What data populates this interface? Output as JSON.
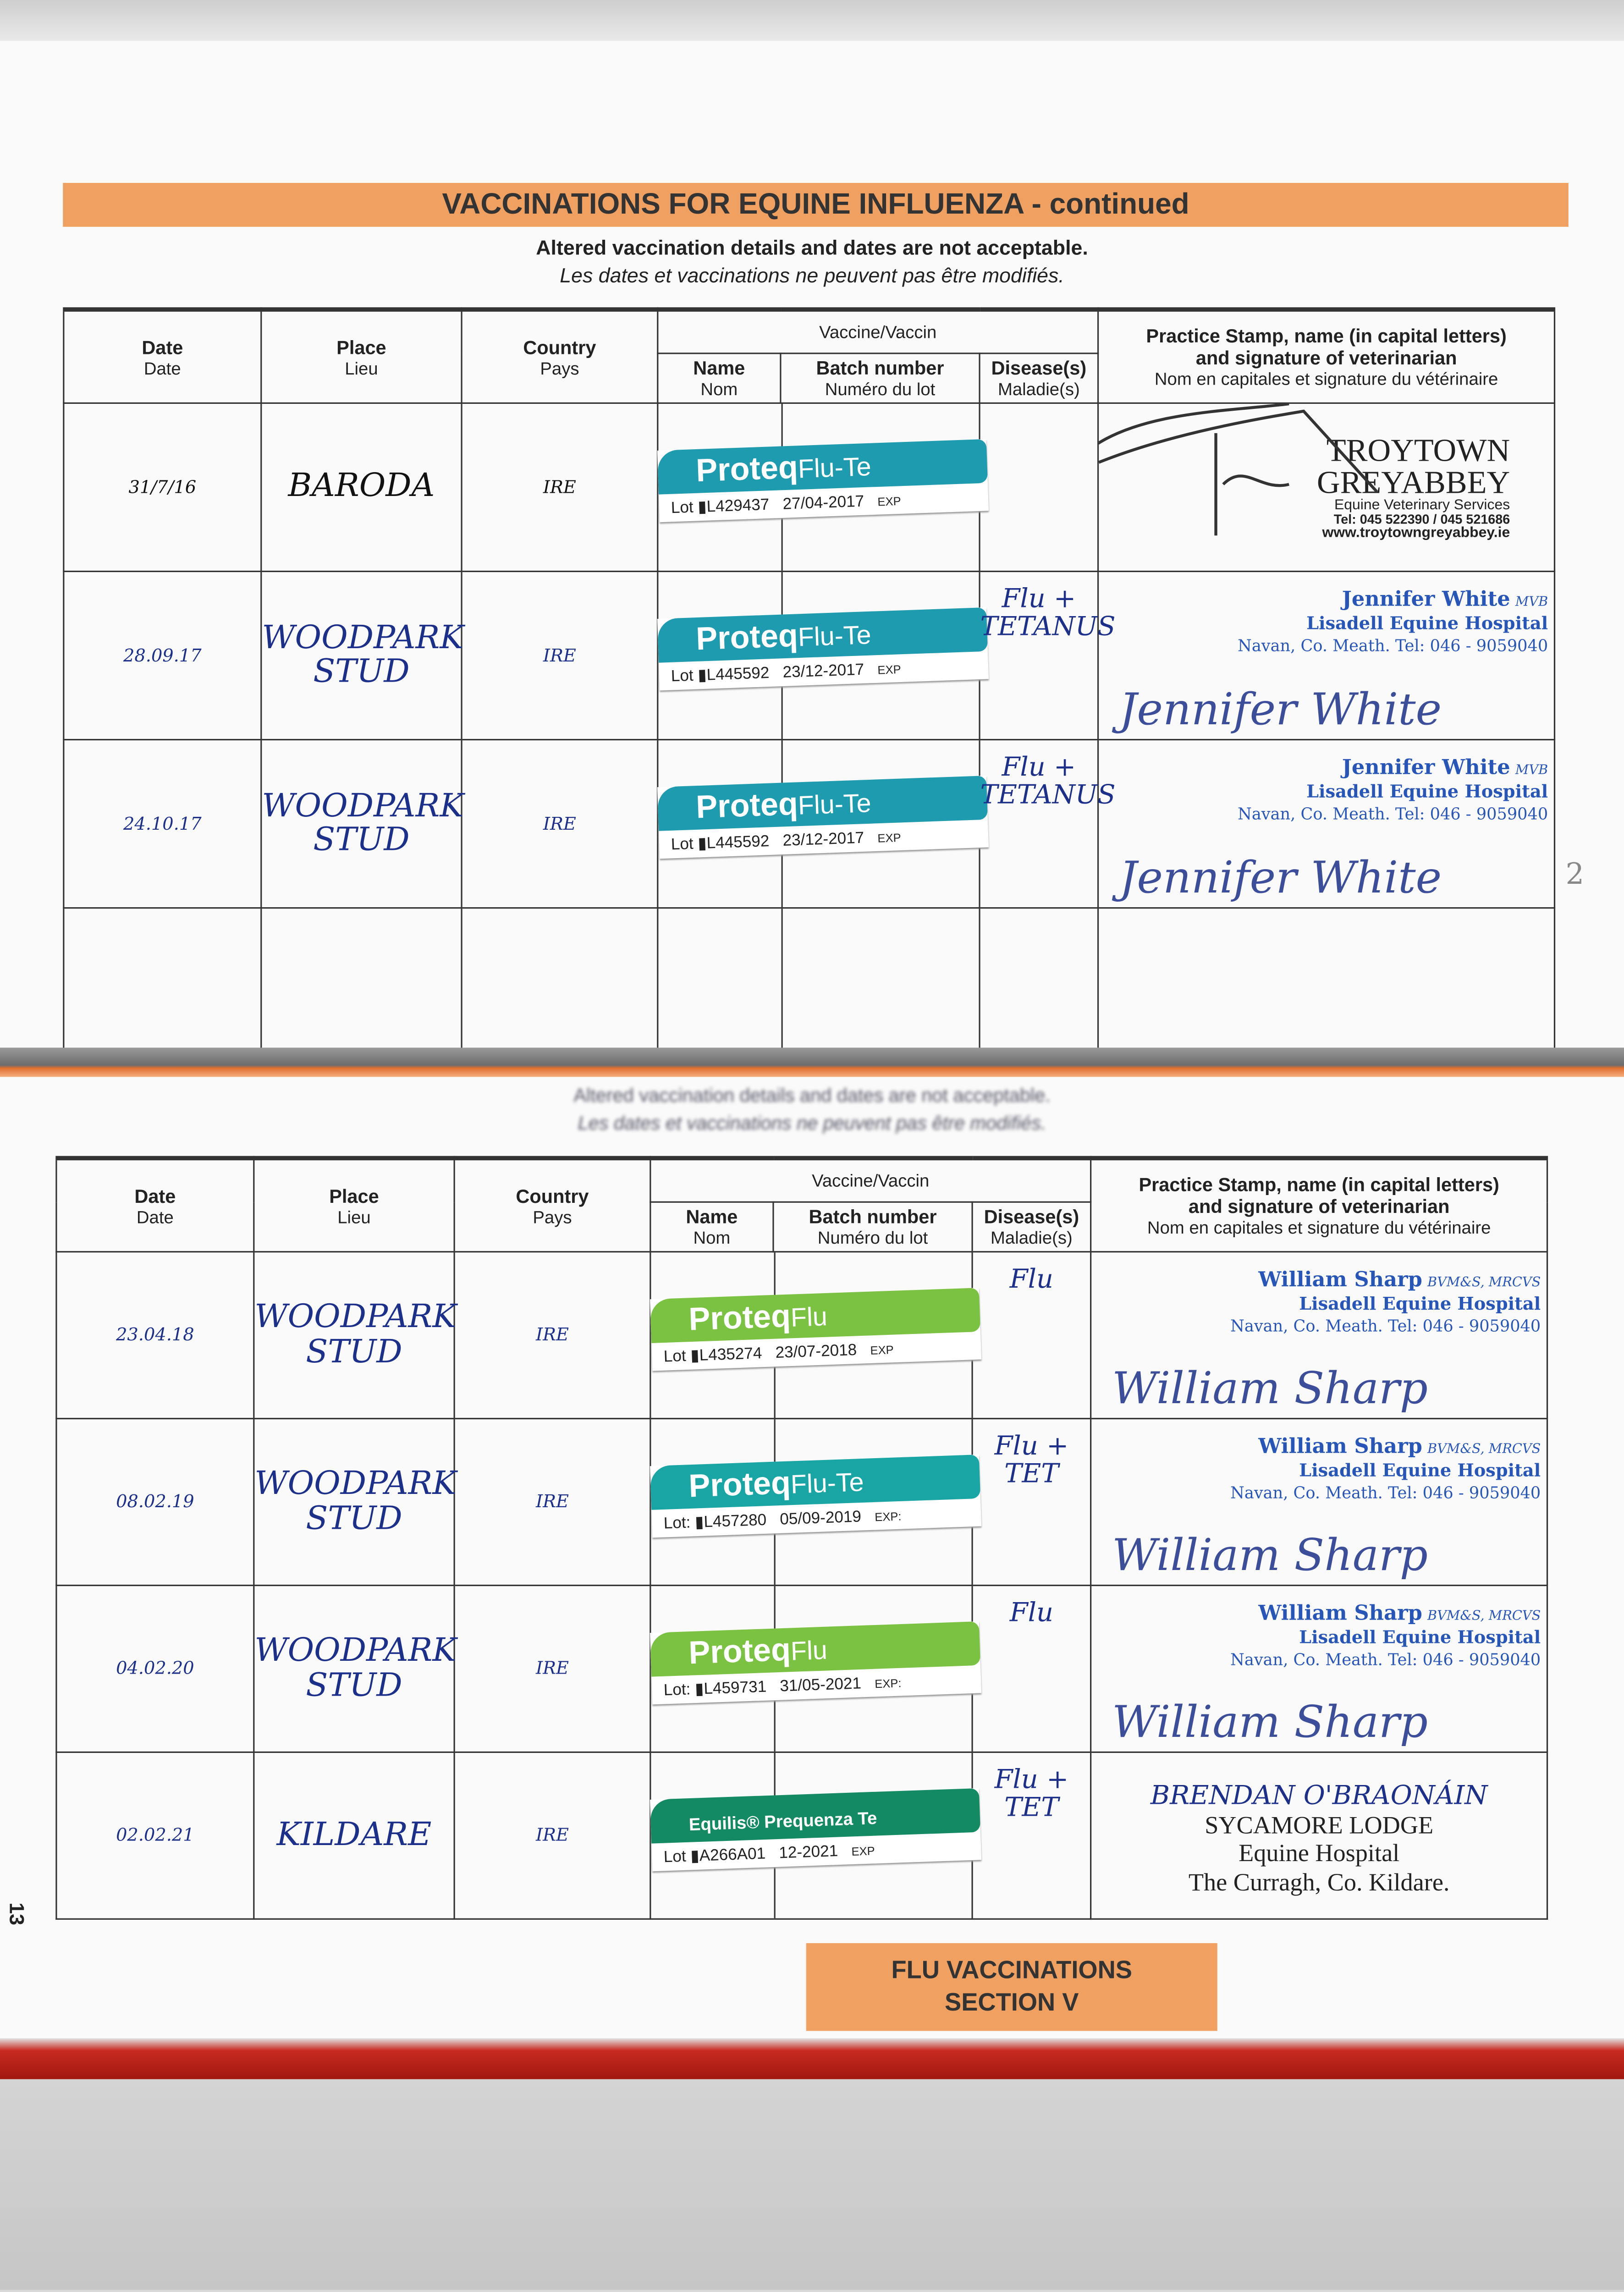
{
  "page": {
    "title": "VACCINATIONS FOR EQUINE INFLUENZA - continued",
    "notice_en": "Altered vaccination details and dates are not acceptable.",
    "notice_fr": "Les dates et vaccinations ne peuvent pas être modifiés.",
    "page_number": "13",
    "footer_line1": "FLU VACCINATIONS",
    "footer_line2": "SECTION V",
    "margin_mark": "2",
    "colors": {
      "banner": "#f0a060",
      "proteq_flu_te": "#1f9bb0",
      "proteq_flu": "#7cc242",
      "equilis": "#138a63",
      "ink": "#1c2f8a",
      "stamp": "#2856b8"
    }
  },
  "headers": {
    "date": "Date",
    "date_fr": "Date",
    "place": "Place",
    "place_fr": "Lieu",
    "country": "Country",
    "country_fr": "Pays",
    "vaccine": "Vaccine/Vaccin",
    "name": "Name",
    "name_fr": "Nom",
    "batch": "Batch number",
    "batch_fr": "Numéro du lot",
    "disease": "Disease(s)",
    "disease_fr": "Maladie(s)",
    "stamp1": "Practice Stamp, name (in capital letters)",
    "stamp2": "and signature of veterinarian",
    "stamp_fr": "Nom en capitales et signature du vétérinaire"
  },
  "top_rows": [
    {
      "date": "31/7/16",
      "place": "BARODA",
      "country": "IRE",
      "vaccine": {
        "brand": "Proteq",
        "variant": "Flu-Te",
        "lot_label": "Lot",
        "lot": "L429437",
        "exp": "27/04-2017",
        "exp_label": "EXP",
        "color": "#1f9bb0"
      },
      "disease": "",
      "stamp": {
        "type": "troytown",
        "line1": "TROYTOWN",
        "line2": "GREYABBEY",
        "line3": "Equine Veterinary Services",
        "line4": "Tel: 045 522390 / 045 521686",
        "line5": "www.troytowngreyabbey.ie"
      }
    },
    {
      "date": "28.09.17",
      "place": "WOODPARK STUD",
      "country": "IRE",
      "vaccine": {
        "brand": "Proteq",
        "variant": "Flu-Te",
        "lot_label": "Lot",
        "lot": "L445592",
        "exp": "23/12-2017",
        "exp_label": "EXP",
        "color": "#1f9bb0"
      },
      "disease": "Flu + TETANUS",
      "stamp": {
        "type": "vet",
        "name": "Jennifer White",
        "quals": "MVB",
        "hospital": "Lisadell Equine Hospital",
        "address": "Navan, Co. Meath.  Tel: 046 - 9059040",
        "signature": "Jennifer White"
      }
    },
    {
      "date": "24.10.17",
      "place": "WOODPARK STUD",
      "country": "IRE",
      "vaccine": {
        "brand": "Proteq",
        "variant": "Flu-Te",
        "lot_label": "Lot",
        "lot": "L445592",
        "exp": "23/12-2017",
        "exp_label": "EXP",
        "color": "#1f9bb0"
      },
      "disease": "Flu + TETANUS",
      "stamp": {
        "type": "vet",
        "name": "Jennifer White",
        "quals": "MVB",
        "hospital": "Lisadell Equine Hospital",
        "address": "Navan, Co. Meath.  Tel: 046 - 9059040",
        "signature": "Jennifer White"
      }
    },
    {
      "date": "",
      "place": "",
      "country": "",
      "vaccine": null,
      "disease": "",
      "stamp": null
    }
  ],
  "bottom_rows": [
    {
      "date": "23.04.18",
      "place": "WOODPARK STUD",
      "country": "IRE",
      "vaccine": {
        "brand": "Proteq",
        "variant": "Flu",
        "lot_label": "Lot",
        "lot": "L435274",
        "exp": "23/07-2018",
        "exp_label": "EXP",
        "color": "#7cc242"
      },
      "disease": "Flu",
      "stamp": {
        "type": "vet",
        "name": "William Sharp",
        "quals": "BVM&S, MRCVS",
        "hospital": "Lisadell Equine Hospital",
        "address": "Navan, Co. Meath.  Tel: 046 - 9059040",
        "signature": "William Sharp"
      }
    },
    {
      "date": "08.02.19",
      "place": "WOODPARK STUD",
      "country": "IRE",
      "vaccine": {
        "brand": "Proteq",
        "variant": "Flu-Te",
        "lot_label": "Lot:",
        "lot": "L457280",
        "exp": "05/09-2019",
        "exp_label": "EXP:",
        "color": "#1aa5a5"
      },
      "disease": "Flu + TET",
      "stamp": {
        "type": "vet",
        "name": "William Sharp",
        "quals": "BVM&S, MRCVS",
        "hospital": "Lisadell Equine Hospital",
        "address": "Navan, Co. Meath.  Tel: 046 - 9059040",
        "signature": "William Sharp"
      }
    },
    {
      "date": "04.02.20",
      "place": "WOODPARK STUD",
      "country": "IRE",
      "vaccine": {
        "brand": "Proteq",
        "variant": "Flu",
        "lot_label": "Lot:",
        "lot": "L459731",
        "exp": "31/05-2021",
        "exp_label": "EXP:",
        "color": "#7cc242"
      },
      "disease": "Flu",
      "stamp": {
        "type": "vet",
        "name": "William Sharp",
        "quals": "BVM&S, MRCVS",
        "hospital": "Lisadell Equine Hospital",
        "address": "Navan, Co. Meath.  Tel: 046 - 9059040",
        "signature": "William Sharp"
      }
    },
    {
      "date": "02.02.21",
      "place": "KILDARE",
      "country": "IRE",
      "vaccine": {
        "brand": "Equilis® Prequenza Te",
        "variant": "",
        "lot_label": "Lot",
        "lot": "A266A01",
        "exp": "12-2021",
        "exp_label": "EXP",
        "color": "#138a63"
      },
      "disease": "Flu + TET",
      "stamp": {
        "type": "sycamore",
        "handwritten": "BRENDAN O'BRAONÁIN",
        "line1": "SYCAMORE LODGE",
        "line2": "Equine Hospital",
        "line3": "The Curragh, Co. Kildare."
      }
    }
  ]
}
